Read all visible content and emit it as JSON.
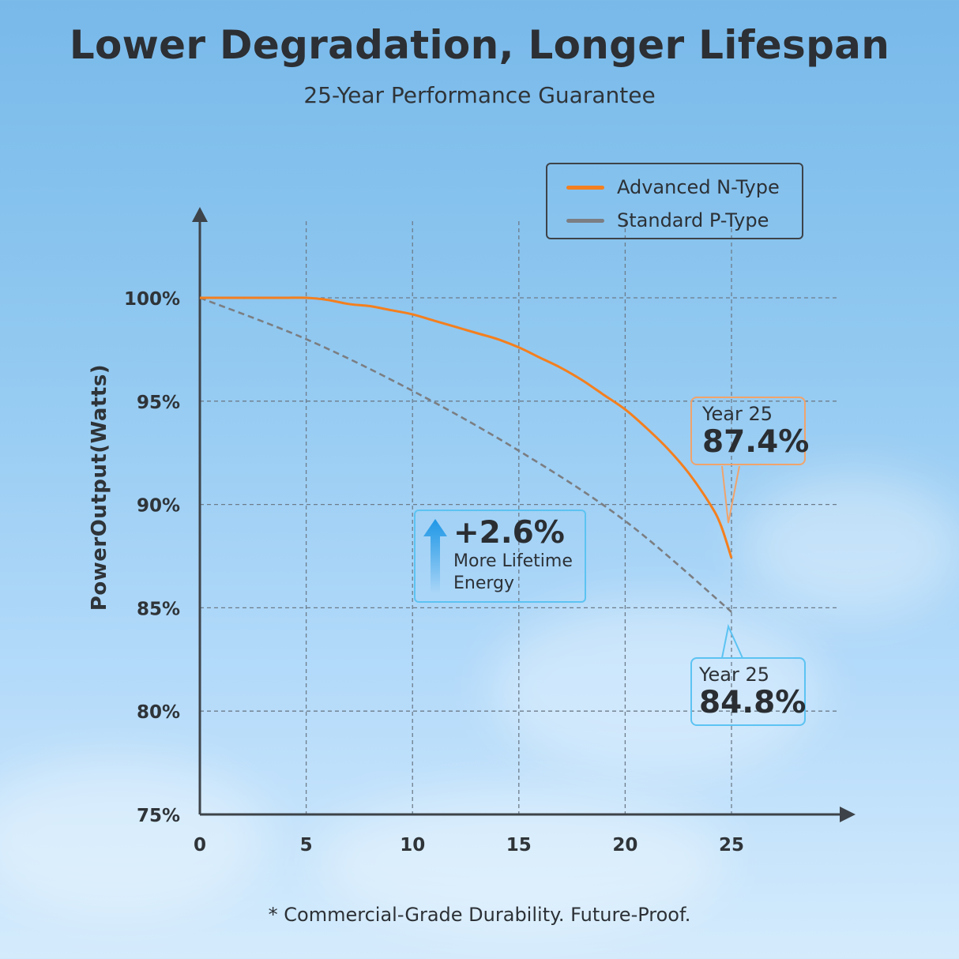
{
  "title": "Lower Degradation, Longer Lifespan",
  "subtitle": "25-Year Performance Guarantee",
  "footnote": "* Commercial-Grade Durability. Future-Proof.",
  "colors": {
    "advanced": "#f47f1e",
    "standard": "#7b7e82",
    "axis": "#3d4349",
    "grid": "#6d7c8a",
    "highlight_border": "#5cc3f2",
    "advanced_callout_border": "#f0a36b"
  },
  "legend": [
    {
      "label": "Advanced N-Type",
      "color": "#f47f1e"
    },
    {
      "label": "Standard P-Type",
      "color": "#7b7e82"
    }
  ],
  "callouts": {
    "advanced": {
      "year": "Year 25",
      "value": "87.4%"
    },
    "standard": {
      "year": "Year 25",
      "value": "84.8%"
    }
  },
  "gain": {
    "value": "+2.6%",
    "label": "More Lifetime Energy",
    "icon": "arrow-up-icon"
  },
  "chart_data": {
    "type": "line",
    "title": "Lower Degradation, Longer Lifespan",
    "subtitle": "25-Year Performance Guarantee",
    "xlabel": "",
    "ylabel": "PowerOutput(Watts)",
    "xlim": [
      0,
      25
    ],
    "ylim": [
      75,
      100
    ],
    "x_ticks": [
      0,
      5,
      10,
      15,
      20,
      25
    ],
    "y_ticks": [
      100,
      95,
      90,
      85,
      80,
      75
    ],
    "y_tick_labels": [
      "100%",
      "95%",
      "90%",
      "85%",
      "80%",
      "75%"
    ],
    "grid": true,
    "legend_position": "top-right",
    "series": [
      {
        "name": "Advanced N-Type",
        "style": "solid",
        "x": [
          0,
          1,
          2,
          3,
          4,
          5,
          6,
          7,
          8,
          9,
          10,
          11,
          12,
          13,
          14,
          15,
          16,
          17,
          18,
          19,
          20,
          21,
          22,
          23,
          24,
          24.5,
          25
        ],
        "y": [
          100,
          100,
          100,
          100,
          100,
          100,
          99.9,
          99.7,
          99.6,
          99.4,
          99.2,
          98.9,
          98.6,
          98.3,
          98.0,
          97.6,
          97.1,
          96.6,
          96.0,
          95.3,
          94.6,
          93.7,
          92.7,
          91.5,
          90.0,
          89.0,
          87.4
        ]
      },
      {
        "name": "Standard P-Type",
        "style": "dashed",
        "x": [
          0,
          5,
          10,
          15,
          20,
          25
        ],
        "y": [
          100,
          98.0,
          95.5,
          92.6,
          89.2,
          84.8
        ]
      }
    ],
    "annotations": [
      {
        "x": 25,
        "y": 87.4,
        "text": "Year 25 87.4%"
      },
      {
        "x": 25,
        "y": 84.8,
        "text": "Year 25 84.8%"
      },
      {
        "text": "+2.6% More Lifetime Energy"
      }
    ]
  }
}
